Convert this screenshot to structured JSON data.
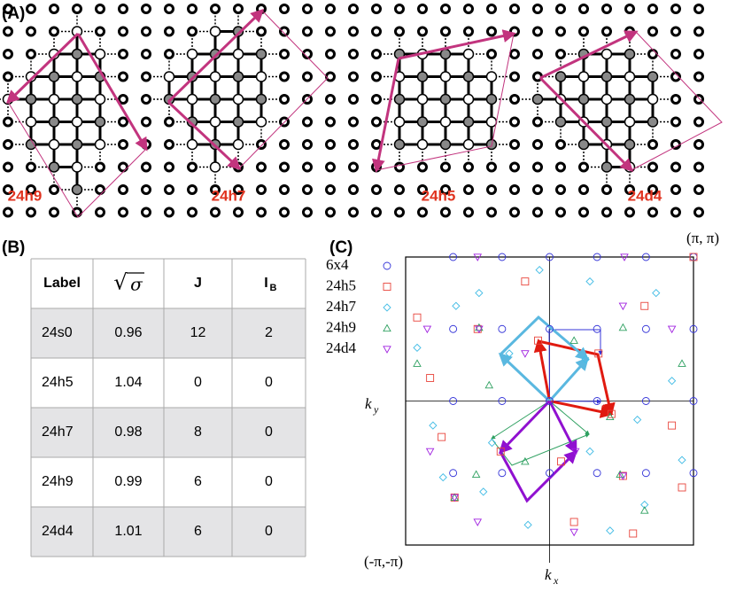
{
  "panel_a": {
    "panel_label": "(A)",
    "clusters": [
      "24h9",
      "24h7",
      "24h5",
      "24d4"
    ]
  },
  "panel_b": {
    "panel_label": "(B)",
    "table": {
      "header": [
        "Label",
        {
          "radical": "√",
          "radicand": "σ"
        },
        "J",
        {
          "base": "I",
          "sub": "B"
        }
      ],
      "rows": [
        [
          "24s0",
          "0.96",
          "12",
          "2"
        ],
        [
          "24h5",
          "1.04",
          "0",
          "0"
        ],
        [
          "24h7",
          "0.98",
          "8",
          "0"
        ],
        [
          "24h9",
          "0.99",
          "6",
          "0"
        ],
        [
          "24d4",
          "1.01",
          "6",
          "0"
        ]
      ]
    }
  },
  "chart_data": {
    "type": "scatter",
    "panel_label": "(C)",
    "annotations": [
      "(π, π)",
      "(-π,-π)"
    ],
    "xlabel": {
      "base": "k",
      "sub": "x"
    },
    "ylabel": {
      "base": "k",
      "sub": "y"
    },
    "xlim": [
      -1,
      1
    ],
    "ylim": [
      -1,
      1
    ],
    "series": [
      {
        "name": "6x4",
        "color": "#3434d8",
        "marker": "circle",
        "x": [
          -0.67,
          -0.33,
          0,
          0.33,
          0.67,
          1,
          -0.67,
          -0.33,
          0,
          0.33,
          0.67,
          1,
          -0.67,
          -0.33,
          0,
          0.33,
          0.67,
          1,
          -0.67,
          -0.33,
          0,
          0.33,
          0.67,
          1
        ],
        "y": [
          -0.5,
          -0.5,
          -0.5,
          -0.5,
          -0.5,
          -0.5,
          0,
          0,
          0,
          0,
          0,
          0,
          0.5,
          0.5,
          0.5,
          0.5,
          0.5,
          0.5,
          1,
          1,
          1,
          1,
          1,
          1
        ]
      },
      {
        "name": "24h5",
        "color": "#e8453c",
        "marker": "square",
        "x": [
          -0.17,
          -0.92,
          -0.5,
          -0.08,
          0.34,
          -0.83,
          0.43,
          0.85,
          -0.75,
          -0.34,
          0.08,
          0.51,
          0.92,
          -0.66,
          0.17,
          0.58,
          1,
          0.66
        ],
        "y": [
          0.83,
          0.58,
          0.5,
          0.42,
          0.33,
          0.16,
          -0.09,
          -0.17,
          -0.25,
          -0.35,
          -0.42,
          -0.52,
          -0.6,
          -0.67,
          -0.84,
          -0.92,
          1,
          0.66
        ]
      },
      {
        "name": "24h7",
        "color": "#45bde6",
        "marker": "diamond",
        "x": [
          -0.07,
          0.28,
          -0.49,
          0.74,
          -0.65,
          -0.92,
          -0.28,
          0.25,
          0.85,
          -0.81,
          0.61,
          -0.4,
          -0.74,
          0.92,
          0.28,
          -0.46,
          0.66,
          -0.15,
          0.42
        ],
        "y": [
          0.91,
          0.83,
          0.75,
          0.75,
          0.66,
          0.37,
          0.33,
          0.29,
          0.14,
          -0.17,
          -0.13,
          -0.29,
          -0.53,
          -0.41,
          -0.35,
          -0.63,
          -0.72,
          -0.86,
          -0.9
        ]
      },
      {
        "name": "24h9",
        "color": "#2ea060",
        "marker": "triangle",
        "x": [
          -0.49,
          0.51,
          -0.92,
          0.92,
          -0.42,
          0.42,
          -0.51,
          0.49,
          -0.17,
          0.17,
          -0.66,
          0.66
        ],
        "y": [
          0.51,
          0.51,
          0.26,
          0.26,
          0.11,
          -0.11,
          -0.51,
          -0.51,
          -0.42,
          0.42,
          -0.67,
          -0.76
        ]
      },
      {
        "name": "24d4",
        "color": "#a020e0",
        "marker": "triangle-down",
        "x": [
          -0.5,
          0.52,
          -0.85,
          -0.49,
          0.51,
          -0.17,
          -0.83,
          0.18,
          -0.66,
          0.51,
          -0.5,
          0.85,
          0.17
        ],
        "y": [
          1,
          1,
          0.5,
          0.5,
          0.66,
          0.33,
          -0.35,
          -0.35,
          -0.67,
          -0.52,
          -0.84,
          0.5,
          -0.91
        ]
      }
    ]
  }
}
